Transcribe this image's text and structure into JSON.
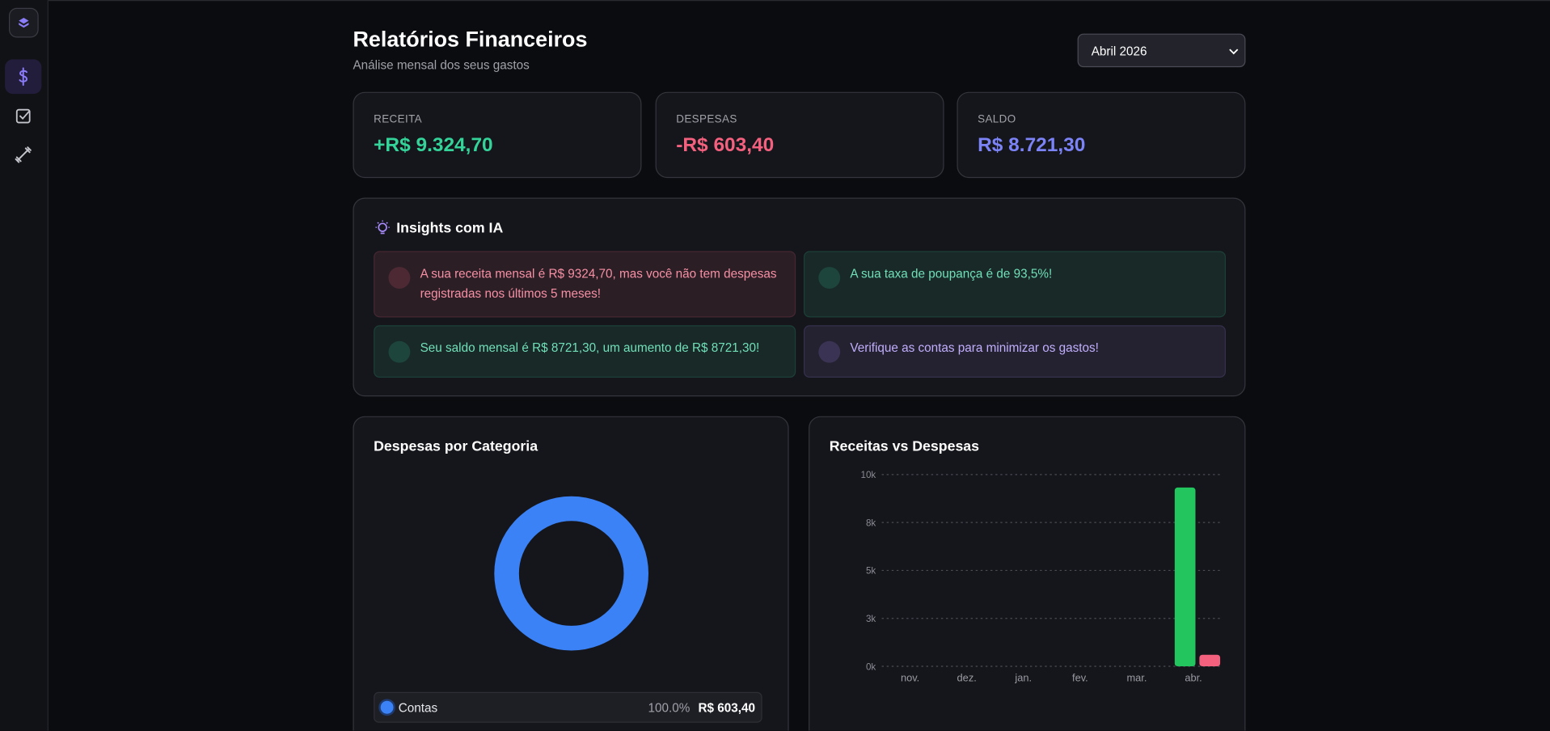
{
  "header": {
    "title": "Relatórios Financeiros",
    "subtitle": "Análise mensal dos seus gastos",
    "period": "Abril 2026"
  },
  "cards": [
    {
      "label": "RECEITA",
      "value": "+R$ 9.324,70",
      "color": "#34d399"
    },
    {
      "label": "DESPESAS",
      "value": "-R$ 603,40",
      "color": "#f4617f"
    },
    {
      "label": "SALDO",
      "value": "R$ 8.721,30",
      "color": "#7b83f6"
    }
  ],
  "insights": {
    "title": "Insights com IA",
    "items": [
      {
        "text": "A sua receita mensal é R$ 9324,70, mas você não tem despesas registradas nos últimos 5 meses!",
        "color": "#f4617f"
      },
      {
        "text": "A sua taxa de poupança é de 93,5%!",
        "color": "#34d399"
      },
      {
        "text": "Seu saldo mensal é R$ 8721,30, um aumento de R$ 8721,30!",
        "color": "#34d399"
      },
      {
        "text": "Verifique as contas para minimizar os gastos!",
        "color": "#a78bfa"
      }
    ]
  },
  "chart_data": [
    {
      "type": "pie",
      "title": "Despesas por Categoria",
      "categories": [
        "Contas"
      ],
      "values": [
        100.0
      ],
      "value_labels": [
        "100.0%"
      ],
      "amount_labels": [
        "R$ 603,40"
      ],
      "colors": [
        "#3b82f6"
      ]
    },
    {
      "type": "bar",
      "title": "Receitas vs Despesas",
      "categories": [
        "nov.",
        "dez.",
        "jan.",
        "fev.",
        "mar.",
        "abr."
      ],
      "series": [
        {
          "color": "#22c55e",
          "values": [
            0,
            0,
            0,
            0,
            0,
            9324.7
          ]
        },
        {
          "color": "#f4617f",
          "values": [
            0,
            0,
            0,
            0,
            0,
            603.4
          ]
        }
      ],
      "ylim": [
        0,
        10000
      ],
      "yticks": [
        {
          "value": 0,
          "label": "0k"
        },
        {
          "value": 2500,
          "label": "3k"
        },
        {
          "value": 5000,
          "label": "5k"
        },
        {
          "value": 7500,
          "label": "8k"
        },
        {
          "value": 10000,
          "label": "10k"
        }
      ],
      "grid": true
    }
  ]
}
